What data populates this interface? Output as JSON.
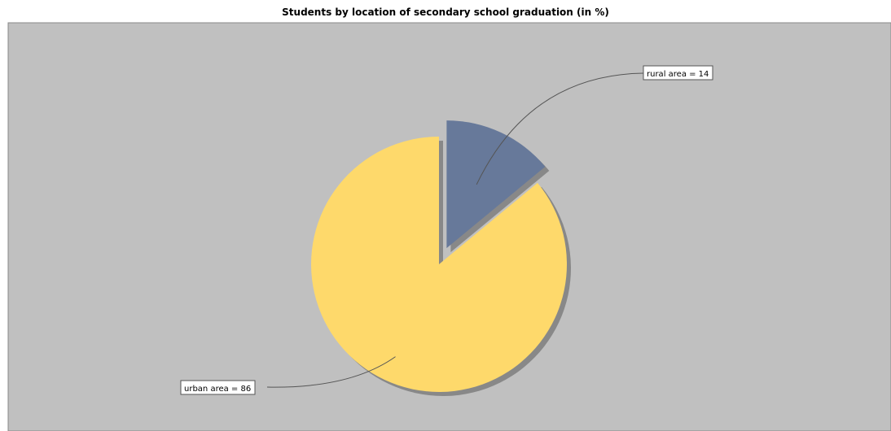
{
  "chart_data": {
    "type": "pie",
    "title": "Students by location of secondary school graduation (in %)",
    "slices": [
      {
        "name": "rural area",
        "value": 14,
        "label": "rural area = 14",
        "color": "#67799a",
        "exploded": true
      },
      {
        "name": "urban area",
        "value": 86,
        "label": "urban area = 86",
        "color": "#fed96b",
        "exploded": false
      }
    ],
    "plot_background": "#c0c0c0",
    "shadow_color": "#888888",
    "legend": "none",
    "grid": false
  }
}
